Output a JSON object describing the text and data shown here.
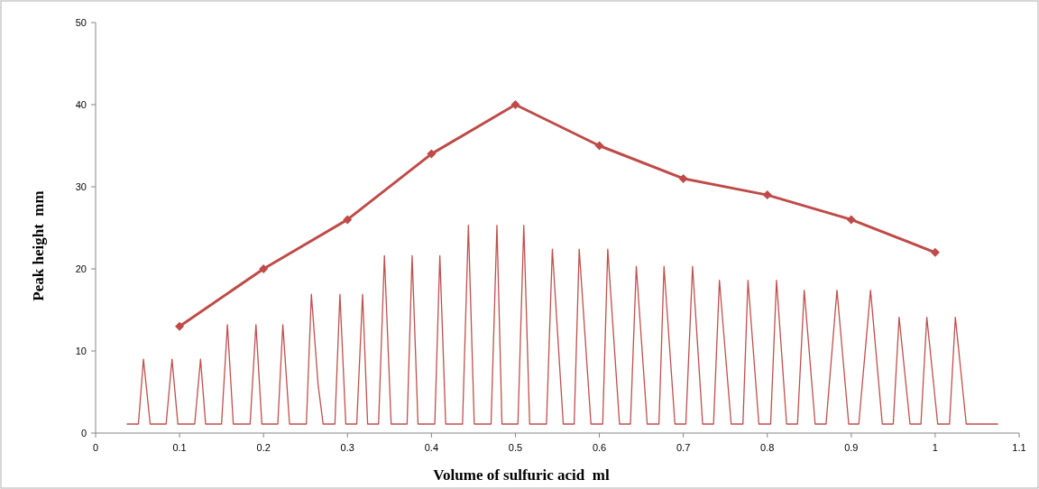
{
  "chart_data": {
    "type": "line",
    "xlabel": "Volume of sulfuric acid  ml",
    "ylabel": "Peak height  mm",
    "xlim": [
      0,
      1.1
    ],
    "xticks": [
      0,
      0.1,
      0.2,
      0.3,
      0.4,
      0.5,
      0.6,
      0.7,
      0.8,
      0.9,
      1,
      1.1
    ],
    "ylim": [
      0,
      50
    ],
    "yticks": [
      0,
      10,
      20,
      30,
      40,
      50
    ],
    "grid": false,
    "series": [
      {
        "color": "#be4b48",
        "marker": "diamond",
        "x": [
          0.1,
          0.2,
          0.3,
          0.4,
          0.5,
          0.6,
          0.7,
          0.8,
          0.9,
          1
        ],
        "values": [
          13,
          20,
          26,
          34,
          40,
          35,
          31,
          29,
          26,
          22
        ]
      },
      {
        "color": "#c0504d",
        "marker": "none",
        "x": [
          0.037,
          0.051,
          0.057,
          0.065,
          0.084,
          0.091,
          0.098,
          0.118,
          0.125,
          0.131,
          0.15,
          0.157,
          0.164,
          0.184,
          0.191,
          0.198,
          0.217,
          0.223,
          0.231,
          0.251,
          0.257,
          0.265,
          0.271,
          0.285,
          0.291,
          0.298,
          0.311,
          0.318,
          0.324,
          0.337,
          0.344,
          0.352,
          0.371,
          0.377,
          0.384,
          0.404,
          0.41,
          0.417,
          0.437,
          0.444,
          0.451,
          0.471,
          0.478,
          0.484,
          0.503,
          0.51,
          0.517,
          0.537,
          0.544,
          0.557,
          0.57,
          0.576,
          0.59,
          0.604,
          0.61,
          0.624,
          0.637,
          0.644,
          0.657,
          0.671,
          0.677,
          0.69,
          0.703,
          0.711,
          0.723,
          0.736,
          0.743,
          0.757,
          0.771,
          0.777,
          0.79,
          0.804,
          0.811,
          0.823,
          0.836,
          0.844,
          0.857,
          0.87,
          0.883,
          0.897,
          0.909,
          0.923,
          0.937,
          0.95,
          0.957,
          0.97,
          0.983,
          0.99,
          1.003,
          1.017,
          1.024,
          1.037,
          1.075
        ],
        "values": [
          1.1,
          1.1,
          9,
          1.1,
          1.1,
          9,
          1.1,
          1.1,
          9,
          1.1,
          1.1,
          13.2,
          1.1,
          1.1,
          13.2,
          1.1,
          1.1,
          13.2,
          1.1,
          1.1,
          16.9,
          5.9,
          1.1,
          1.1,
          16.9,
          1.1,
          1.1,
          16.9,
          1.1,
          1.1,
          21.6,
          1.1,
          1.1,
          21.6,
          1.1,
          1.1,
          21.6,
          1.1,
          1.1,
          25.3,
          1.1,
          1.1,
          25.3,
          1.1,
          1.1,
          25.3,
          1.1,
          1.1,
          22.4,
          1.1,
          1.1,
          22.4,
          1.1,
          1.1,
          22.4,
          1.1,
          1.1,
          20.3,
          1.1,
          1.1,
          20.3,
          1.1,
          1.1,
          20.3,
          1.1,
          1.1,
          18.6,
          1.1,
          1.1,
          18.6,
          1.1,
          1.1,
          18.6,
          1.1,
          1.1,
          17.4,
          1.1,
          1.1,
          17.4,
          1.1,
          1.1,
          17.4,
          1.1,
          1.1,
          14.1,
          1.1,
          1.1,
          14.1,
          1.1,
          1.1,
          14.1,
          1.1,
          1.1
        ]
      }
    ]
  }
}
